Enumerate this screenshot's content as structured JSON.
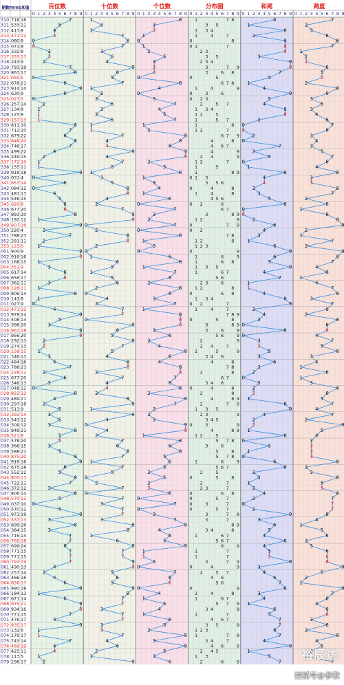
{
  "header": {
    "col_issue": "期数",
    "col_draw": "开奖号码",
    "col_sum": "和值",
    "sections": [
      "百位数",
      "十位数",
      "个位数",
      "分布图",
      "和尾",
      "跨度"
    ],
    "digits": [
      "0",
      "1",
      "2",
      "3",
      "4",
      "5",
      "6",
      "7",
      "8",
      "9"
    ]
  },
  "colors": {
    "bai_bg": "#e6f3e6",
    "shi_bg": "#f1f1e8",
    "ge_bg": "#f9dfe9",
    "fenbu_bg": "#e0efe3",
    "hewei_bg": "#dcdcf6",
    "kuadu_bg": "#f9e1d9",
    "line": "#3a8fe0",
    "red": "#e0201b",
    "navy": "#22247a"
  },
  "chart_data": {
    "type": "table",
    "title": "百位数 十位数 个位数 分布图 和尾 跨度",
    "rows": [
      {
        "issue": "310",
        "number": "718",
        "sum": "16"
      },
      {
        "issue": "311",
        "number": "533",
        "sum": "11"
      },
      {
        "issue": "312",
        "number": "413",
        "sum": "8"
      },
      {
        "issue": "313",
        "number": "471",
        "sum": "12"
      },
      {
        "issue": "314",
        "number": "080",
        "sum": "8"
      },
      {
        "issue": "315",
        "number": "071",
        "sum": "8"
      },
      {
        "issue": "316",
        "number": "332",
        "sum": "8"
      },
      {
        "issue": "317",
        "number": "355",
        "sum": "13"
      },
      {
        "issue": "318",
        "number": "243",
        "sum": "9"
      },
      {
        "issue": "319",
        "number": "793",
        "sum": "19"
      },
      {
        "issue": "320",
        "number": "863",
        "sum": "17"
      },
      {
        "issue": "321",
        "number": "050",
        "sum": "5"
      },
      {
        "issue": "322",
        "number": "678",
        "sum": "21"
      },
      {
        "issue": "323",
        "number": "914",
        "sum": "14"
      },
      {
        "issue": "324",
        "number": "630",
        "sum": "9"
      },
      {
        "issue": "325",
        "number": "023",
        "sum": "5"
      },
      {
        "issue": "326",
        "number": "257",
        "sum": "14"
      },
      {
        "issue": "327",
        "number": "134",
        "sum": "8"
      },
      {
        "issue": "328",
        "number": "125",
        "sum": "8"
      },
      {
        "issue": "329",
        "number": "157",
        "sum": "13"
      },
      {
        "issue": "330",
        "number": "811",
        "sum": "10"
      },
      {
        "issue": "331",
        "number": "712",
        "sum": "10"
      },
      {
        "issue": "332",
        "number": "679",
        "sum": "22"
      },
      {
        "issue": "333",
        "number": "848",
        "sum": "20"
      },
      {
        "issue": "334",
        "number": "746",
        "sum": "17"
      },
      {
        "issue": "335",
        "number": "499",
        "sum": "22"
      },
      {
        "issue": "336",
        "number": "249",
        "sum": "15"
      },
      {
        "issue": "337",
        "number": "172",
        "sum": "10"
      },
      {
        "issue": "338",
        "number": "155",
        "sum": "11"
      },
      {
        "issue": "339",
        "number": "918",
        "sum": "18"
      },
      {
        "issue": "340",
        "number": "031",
        "sum": "4"
      },
      {
        "issue": "341",
        "number": "653",
        "sum": "14"
      },
      {
        "issue": "342",
        "number": "084",
        "sum": "12"
      },
      {
        "issue": "343",
        "number": "481",
        "sum": "13"
      },
      {
        "issue": "344",
        "number": "546",
        "sum": "15"
      },
      {
        "issue": "345",
        "number": "620",
        "sum": "8"
      },
      {
        "issue": "346",
        "number": "677",
        "sum": "20"
      },
      {
        "issue": "347",
        "number": "893",
        "sum": "20"
      },
      {
        "issue": "348",
        "number": "192",
        "sum": "12"
      },
      {
        "issue": "349",
        "number": "907",
        "sum": "16"
      },
      {
        "issue": "350",
        "number": "220",
        "sum": "4"
      },
      {
        "issue": "351",
        "number": "788",
        "sum": "23"
      },
      {
        "issue": "352",
        "number": "281",
        "sum": "11"
      },
      {
        "issue": "353",
        "number": "123",
        "sum": "6"
      },
      {
        "issue": "001",
        "number": "900",
        "sum": "9"
      },
      {
        "issue": "002",
        "number": "916",
        "sum": "16"
      },
      {
        "issue": "003",
        "number": "168",
        "sum": "15"
      },
      {
        "issue": "004",
        "number": "351",
        "sum": "9"
      },
      {
        "issue": "005",
        "number": "617",
        "sum": "14"
      },
      {
        "issue": "006",
        "number": "656",
        "sum": "17"
      },
      {
        "issue": "007",
        "number": "362",
        "sum": "11"
      },
      {
        "issue": "008",
        "number": "128",
        "sum": "11"
      },
      {
        "issue": "009",
        "number": "806",
        "sum": "14"
      },
      {
        "issue": "010",
        "number": "143",
        "sum": "8"
      },
      {
        "issue": "011",
        "number": "027",
        "sum": "9"
      },
      {
        "issue": "012",
        "number": "471",
        "sum": "12"
      },
      {
        "issue": "013",
        "number": "978",
        "sum": "24"
      },
      {
        "issue": "014",
        "number": "508",
        "sum": "13"
      },
      {
        "issue": "015",
        "number": "398",
        "sum": "20"
      },
      {
        "issue": "016",
        "number": "963",
        "sum": "18"
      },
      {
        "issue": "017",
        "number": "956",
        "sum": "20"
      },
      {
        "issue": "018",
        "number": "292",
        "sum": "13"
      },
      {
        "issue": "019",
        "number": "274",
        "sum": "13"
      },
      {
        "issue": "020",
        "number": "159",
        "sum": "15"
      },
      {
        "issue": "021",
        "number": "346",
        "sum": "13"
      },
      {
        "issue": "022",
        "number": "484",
        "sum": "16"
      },
      {
        "issue": "023",
        "number": "788",
        "sum": "23"
      },
      {
        "issue": "024",
        "number": "228",
        "sum": "12"
      },
      {
        "issue": "025",
        "number": "677",
        "sum": "20"
      },
      {
        "issue": "026",
        "number": "346",
        "sum": "13"
      },
      {
        "issue": "027",
        "number": "048",
        "sum": "12"
      },
      {
        "issue": "028",
        "number": "822",
        "sum": "12"
      },
      {
        "issue": "029",
        "number": "489",
        "sum": "21"
      },
      {
        "issue": "030",
        "number": "297",
        "sum": "18"
      },
      {
        "issue": "031",
        "number": "513",
        "sum": "9"
      },
      {
        "issue": "032",
        "number": "392",
        "sum": "14"
      },
      {
        "issue": "033",
        "number": "543",
        "sum": "12"
      },
      {
        "issue": "034",
        "number": "309",
        "sum": "12"
      },
      {
        "issue": "035",
        "number": "849",
        "sum": "21"
      },
      {
        "issue": "036",
        "number": "521",
        "sum": "8"
      },
      {
        "issue": "037",
        "number": "578",
        "sum": "20"
      },
      {
        "issue": "038",
        "number": "366",
        "sum": "15"
      },
      {
        "issue": "039",
        "number": "588",
        "sum": "21"
      },
      {
        "issue": "040",
        "number": "875",
        "sum": "20"
      },
      {
        "issue": "041",
        "number": "916",
        "sum": "16"
      },
      {
        "issue": "042",
        "number": "675",
        "sum": "18"
      },
      {
        "issue": "043",
        "number": "552",
        "sum": "12"
      },
      {
        "issue": "044",
        "number": "805",
        "sum": "13"
      },
      {
        "issue": "045",
        "number": "722",
        "sum": "11"
      },
      {
        "issue": "046",
        "number": "372",
        "sum": "12"
      },
      {
        "issue": "047",
        "number": "806",
        "sum": "14"
      },
      {
        "issue": "048",
        "number": "570",
        "sum": "12"
      },
      {
        "issue": "049",
        "number": "037",
        "sum": "10"
      },
      {
        "issue": "050",
        "number": "570",
        "sum": "12"
      },
      {
        "issue": "051",
        "number": "973",
        "sum": "19"
      },
      {
        "issue": "052",
        "number": "337",
        "sum": "13"
      },
      {
        "issue": "053",
        "number": "899",
        "sum": "26"
      },
      {
        "issue": "054",
        "number": "384",
        "sum": "15"
      },
      {
        "issue": "055",
        "number": "716",
        "sum": "14"
      },
      {
        "issue": "056",
        "number": "765",
        "sum": "18"
      },
      {
        "issue": "057",
        "number": "699",
        "sum": "24"
      },
      {
        "issue": "058",
        "number": "771",
        "sum": "15"
      },
      {
        "issue": "059",
        "number": "771",
        "sum": "15"
      },
      {
        "issue": "060",
        "number": "793",
        "sum": "19"
      },
      {
        "issue": "061",
        "number": "490",
        "sum": "13"
      },
      {
        "issue": "062",
        "number": "257",
        "sum": "14"
      },
      {
        "issue": "063",
        "number": "466",
        "sum": "16"
      },
      {
        "issue": "064",
        "number": "656",
        "sum": "17"
      },
      {
        "issue": "065",
        "number": "990",
        "sum": "18"
      },
      {
        "issue": "066",
        "number": "184",
        "sum": "13"
      },
      {
        "issue": "067",
        "number": "671",
        "sum": "14"
      },
      {
        "issue": "068",
        "number": "975",
        "sum": "21"
      },
      {
        "issue": "069",
        "number": "934",
        "sum": "16"
      },
      {
        "issue": "070",
        "number": "771",
        "sum": "15"
      },
      {
        "issue": "071",
        "number": "476",
        "sum": "17"
      },
      {
        "issue": "072",
        "number": "935",
        "sum": "17"
      },
      {
        "issue": "073",
        "number": "132",
        "sum": "6"
      },
      {
        "issue": "074",
        "number": "179",
        "sum": "17"
      },
      {
        "issue": "075",
        "number": "743",
        "sum": "14"
      },
      {
        "issue": "076",
        "number": "469",
        "sum": "19"
      },
      {
        "issue": "077",
        "number": "425",
        "sum": "11"
      },
      {
        "issue": "078",
        "number": "113",
        "sum": "5"
      },
      {
        "issue": "079",
        "number": "296",
        "sum": "17"
      }
    ]
  },
  "watermark": {
    "brand": "裕辰达",
    "credit": "搜狐号@参歌"
  }
}
